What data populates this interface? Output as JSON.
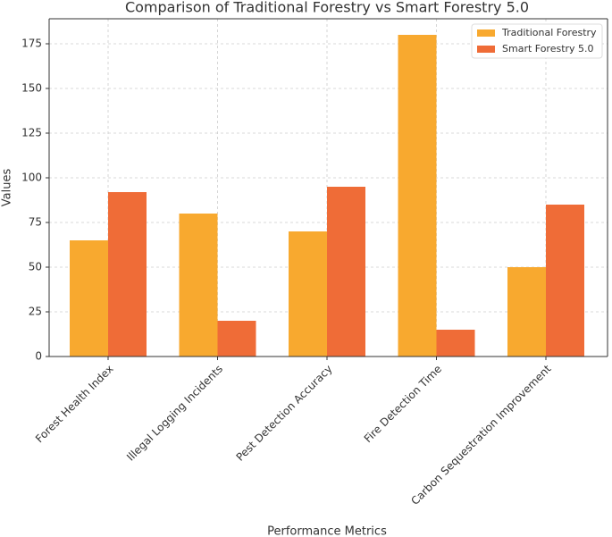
{
  "chart_data": {
    "type": "bar",
    "title": "Comparison of Traditional Forestry vs Smart Forestry 5.0",
    "x_label": "Performance Metrics",
    "y_label": "Values",
    "categories": [
      "Forest Health Index",
      "Illegal Logging Incidents",
      "Pest Detection Accuracy",
      "Fire Detection Time",
      "Carbon Sequestration Improvement"
    ],
    "series": [
      {
        "name": "Traditional Forestry",
        "color": "#f8a92f",
        "values": [
          65,
          80,
          70,
          180,
          50
        ]
      },
      {
        "name": "Smart Forestry 5.0",
        "color": "#ef6c37",
        "values": [
          92,
          20,
          95,
          15,
          85
        ]
      }
    ],
    "ylim": [
      0,
      189
    ],
    "yticks": [
      0,
      25,
      50,
      75,
      100,
      125,
      150,
      175
    ],
    "grid": true,
    "legend": "upper right"
  }
}
